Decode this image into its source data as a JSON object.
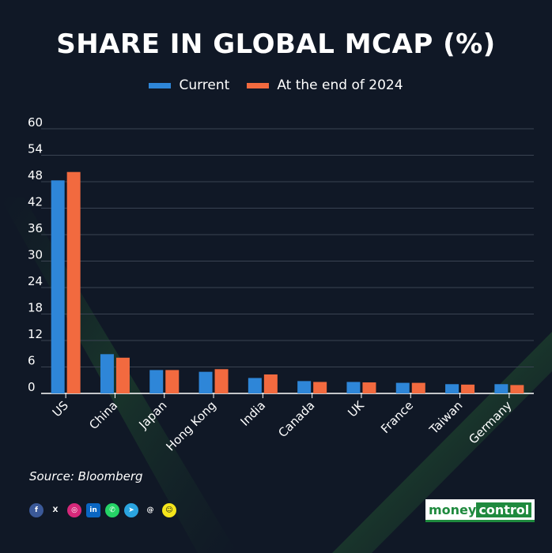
{
  "chart_data": {
    "type": "bar",
    "title": "SHARE IN GLOBAL MCAP (%)",
    "categories": [
      "US",
      "China",
      "Japan",
      "Hong Kong",
      "India",
      "Canada",
      "UK",
      "France",
      "Taiwan",
      "Germany"
    ],
    "series": [
      {
        "name": "Current",
        "color": "#2e86d8",
        "values": [
          48.3,
          8.9,
          5.3,
          4.9,
          3.5,
          2.8,
          2.6,
          2.4,
          2.1,
          2.1
        ]
      },
      {
        "name": "At the end of 2024",
        "color": "#f26a3f",
        "values": [
          50.2,
          8.1,
          5.3,
          5.5,
          4.3,
          2.6,
          2.5,
          2.4,
          2.0,
          1.9
        ]
      }
    ],
    "yticks": [
      "60",
      "54",
      "48",
      "42",
      "36",
      "30",
      "24",
      "18",
      "12",
      "6",
      "0"
    ],
    "ylim": [
      0,
      60
    ],
    "grid": true,
    "legend_position": "top-center"
  },
  "source": "Source: Bloomberg",
  "social_icons": [
    "facebook-icon",
    "x-icon",
    "instagram-icon",
    "linkedin-icon",
    "whatsapp-icon",
    "telegram-icon",
    "threads-icon",
    "snapchat-icon"
  ],
  "logo": {
    "part1": "money",
    "part2": "control"
  }
}
